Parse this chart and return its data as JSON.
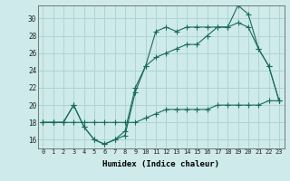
{
  "xlabel": "Humidex (Indice chaleur)",
  "bg_color": "#ceeaea",
  "grid_color": "#aed4d4",
  "line_color": "#1a6b5a",
  "xlim": [
    -0.5,
    23.5
  ],
  "ylim": [
    15.0,
    31.5
  ],
  "xticks": [
    0,
    1,
    2,
    3,
    4,
    5,
    6,
    7,
    8,
    9,
    10,
    11,
    12,
    13,
    14,
    15,
    16,
    17,
    18,
    19,
    20,
    21,
    22,
    23
  ],
  "yticks": [
    16,
    18,
    20,
    22,
    24,
    26,
    28,
    30
  ],
  "line1_x": [
    0,
    1,
    2,
    3,
    4,
    5,
    6,
    7,
    8,
    9,
    10,
    11,
    12,
    13,
    14,
    15,
    16,
    17,
    18,
    19,
    20,
    21,
    22,
    23
  ],
  "line1_y": [
    18,
    18,
    18,
    20,
    17.5,
    16,
    15.5,
    16,
    16.5,
    21.5,
    24.5,
    28.5,
    29,
    28.5,
    29,
    29,
    29,
    29,
    29,
    29.5,
    29,
    26.5,
    24.5,
    20.5
  ],
  "line2_x": [
    0,
    1,
    2,
    3,
    4,
    5,
    6,
    7,
    8,
    9,
    10,
    11,
    12,
    13,
    14,
    15,
    16,
    17,
    18,
    19,
    20,
    21,
    22,
    23
  ],
  "line2_y": [
    18,
    18,
    18,
    20,
    17.5,
    16,
    15.5,
    16,
    17,
    22,
    24.5,
    25.5,
    26,
    26.5,
    27,
    27,
    28,
    29,
    29,
    31.5,
    30.5,
    26.5,
    24.5,
    20.5
  ],
  "line3_x": [
    0,
    1,
    2,
    3,
    4,
    5,
    6,
    7,
    8,
    9,
    10,
    11,
    12,
    13,
    14,
    15,
    16,
    17,
    18,
    19,
    20,
    21,
    22,
    23
  ],
  "line3_y": [
    18,
    18,
    18,
    18,
    18,
    18,
    18,
    18,
    18,
    18,
    18.5,
    19,
    19.5,
    19.5,
    19.5,
    19.5,
    19.5,
    20,
    20,
    20,
    20,
    20,
    20.5,
    20.5
  ]
}
